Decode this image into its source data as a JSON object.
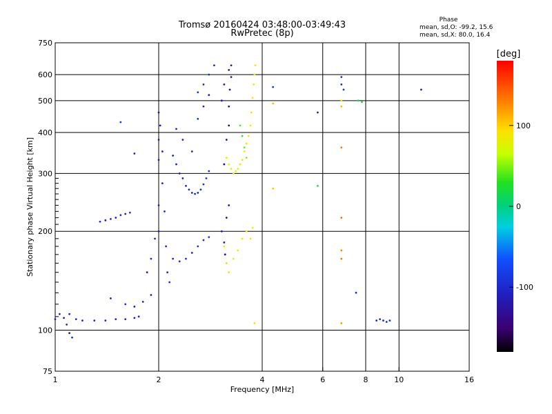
{
  "chart_data": {
    "type": "scatter",
    "title": "Tromsø 20160424 03:48:00-03:49:43",
    "subtitle": "RwPretec (8p)",
    "xlabel": "Frequency [MHz]",
    "ylabel": "Stationary phase Virtual Height [km]",
    "xscale": "log",
    "yscale": "log",
    "xlim": [
      1,
      16
    ],
    "ylim": [
      75,
      750
    ],
    "xticks": [
      1,
      2,
      4,
      6,
      8,
      10,
      16
    ],
    "yticks": [
      75,
      100,
      200,
      300,
      400,
      500,
      600,
      750
    ],
    "x_gridlines": [
      2,
      4,
      6,
      8,
      10
    ],
    "y_gridlines": [
      100,
      200,
      300,
      400,
      500,
      600
    ],
    "stats": {
      "heading": "Phase",
      "o_line": "mean, sd,O: -99.2, 15.6",
      "x_line": "mean, sd,X:  80.0, 16.4"
    },
    "colorbar": {
      "label": "[deg]",
      "range": [
        -180,
        180
      ],
      "ticks": [
        100,
        0,
        -100
      ]
    },
    "series": [
      {
        "mode": "O",
        "points": [
          [
            1.0,
            108,
            -110
          ],
          [
            1.03,
            112,
            -105
          ],
          [
            1.06,
            109,
            -112
          ],
          [
            1.08,
            104,
            -100
          ],
          [
            1.1,
            98,
            -120
          ],
          [
            1.12,
            95,
            -95
          ],
          [
            1.15,
            108,
            -108
          ],
          [
            1.2,
            107,
            -112
          ],
          [
            1.3,
            107,
            -110
          ],
          [
            1.4,
            107,
            -108
          ],
          [
            1.5,
            108,
            -110
          ],
          [
            1.6,
            108,
            -112
          ],
          [
            1.7,
            109,
            -110
          ],
          [
            1.75,
            110,
            -105
          ],
          [
            1.35,
            214,
            -105
          ],
          [
            1.4,
            216,
            -110
          ],
          [
            1.45,
            218,
            -100
          ],
          [
            1.5,
            220,
            -108
          ],
          [
            1.55,
            224,
            -104
          ],
          [
            1.6,
            226,
            -112
          ],
          [
            1.65,
            228,
            -100
          ],
          [
            1.45,
            125,
            -115
          ],
          [
            1.6,
            120,
            -100
          ],
          [
            1.7,
            118,
            -110
          ],
          [
            1.8,
            122,
            -105
          ],
          [
            1.9,
            128,
            -112
          ],
          [
            1.55,
            430,
            -95
          ],
          [
            1.7,
            345,
            -110
          ],
          [
            1.85,
            150,
            -110
          ],
          [
            1.9,
            165,
            -100
          ],
          [
            1.95,
            190,
            -105
          ],
          [
            2.0,
            200,
            -120
          ],
          [
            2.0,
            240,
            -110
          ],
          [
            2.0,
            330,
            -115
          ],
          [
            2.0,
            380,
            -120
          ],
          [
            2.0,
            460,
            -125
          ],
          [
            2.02,
            420,
            -110
          ],
          [
            2.05,
            350,
            -112
          ],
          [
            2.05,
            280,
            -110
          ],
          [
            2.08,
            230,
            -100
          ],
          [
            2.1,
            180,
            -105
          ],
          [
            2.12,
            150,
            -100
          ],
          [
            2.15,
            140,
            -102
          ],
          [
            2.2,
            340,
            -110
          ],
          [
            2.25,
            320,
            -112
          ],
          [
            2.3,
            300,
            -110
          ],
          [
            2.35,
            290,
            -108
          ],
          [
            2.4,
            275,
            -105
          ],
          [
            2.45,
            268,
            -100
          ],
          [
            2.5,
            262,
            -102
          ],
          [
            2.55,
            260,
            -105
          ],
          [
            2.6,
            262,
            -100
          ],
          [
            2.65,
            268,
            -100
          ],
          [
            2.7,
            278,
            -98
          ],
          [
            2.75,
            290,
            -95
          ],
          [
            2.8,
            305,
            -100
          ],
          [
            2.2,
            165,
            -105
          ],
          [
            2.3,
            162,
            -100
          ],
          [
            2.4,
            165,
            -98
          ],
          [
            2.5,
            172,
            -100
          ],
          [
            2.6,
            180,
            -95
          ],
          [
            2.7,
            188,
            -100
          ],
          [
            2.8,
            192,
            -95
          ],
          [
            2.25,
            410,
            -110
          ],
          [
            2.35,
            380,
            -108
          ],
          [
            2.5,
            350,
            -105
          ],
          [
            2.6,
            440,
            -100
          ],
          [
            2.7,
            480,
            -110
          ],
          [
            2.8,
            520,
            -115
          ],
          [
            2.6,
            530,
            -95
          ],
          [
            2.7,
            560,
            -100
          ],
          [
            2.8,
            600,
            -98
          ],
          [
            2.9,
            640,
            -105
          ],
          [
            3.05,
            200,
            -125
          ],
          [
            3.1,
            185,
            -130
          ],
          [
            3.12,
            170,
            -135
          ],
          [
            3.15,
            220,
            -140
          ],
          [
            3.2,
            240,
            -130
          ],
          [
            3.1,
            320,
            -135
          ],
          [
            3.15,
            380,
            -140
          ],
          [
            3.2,
            420,
            -145
          ],
          [
            3.2,
            480,
            -140
          ],
          [
            3.22,
            540,
            -135
          ],
          [
            3.25,
            590,
            -130
          ],
          [
            3.25,
            640,
            -125
          ],
          [
            3.2,
            620,
            -130
          ],
          [
            3.1,
            560,
            -125
          ],
          [
            3.05,
            500,
            -120
          ],
          [
            4.3,
            550,
            -95
          ],
          [
            6.8,
            590,
            -110
          ],
          [
            6.8,
            560,
            -105
          ],
          [
            6.9,
            540,
            -100
          ],
          [
            5.8,
            460,
            -110
          ],
          [
            8.6,
            107,
            -110
          ],
          [
            8.8,
            108,
            -105
          ],
          [
            9.0,
            107,
            -110
          ],
          [
            9.2,
            106,
            -105
          ],
          [
            9.4,
            107,
            -100
          ],
          [
            7.5,
            130,
            -100
          ],
          [
            11.6,
            540,
            -120
          ],
          [
            1.1,
            112,
            -110
          ]
        ]
      },
      {
        "mode": "X",
        "points": [
          [
            3.15,
            335,
            70
          ],
          [
            3.2,
            320,
            65
          ],
          [
            3.25,
            310,
            75
          ],
          [
            3.3,
            300,
            80
          ],
          [
            3.35,
            305,
            78
          ],
          [
            3.4,
            310,
            82
          ],
          [
            3.45,
            320,
            85
          ],
          [
            3.5,
            330,
            80
          ],
          [
            3.55,
            350,
            85
          ],
          [
            3.6,
            370,
            90
          ],
          [
            3.65,
            390,
            88
          ],
          [
            3.7,
            420,
            92
          ],
          [
            3.72,
            460,
            90
          ],
          [
            3.75,
            510,
            85
          ],
          [
            3.78,
            560,
            80
          ],
          [
            3.8,
            600,
            82
          ],
          [
            3.82,
            640,
            85
          ],
          [
            3.45,
            420,
            40
          ],
          [
            3.5,
            390,
            35
          ],
          [
            3.55,
            360,
            45
          ],
          [
            3.6,
            335,
            50
          ],
          [
            3.1,
            180,
            95
          ],
          [
            3.15,
            160,
            100
          ],
          [
            3.2,
            150,
            90
          ],
          [
            3.3,
            165,
            80
          ],
          [
            3.4,
            175,
            70
          ],
          [
            3.5,
            190,
            75
          ],
          [
            3.6,
            200,
            82
          ],
          [
            3.7,
            190,
            85
          ],
          [
            3.75,
            205,
            80
          ],
          [
            4.3,
            490,
            110
          ],
          [
            4.3,
            270,
            105
          ],
          [
            6.8,
            360,
            135
          ],
          [
            6.8,
            220,
            140
          ],
          [
            6.8,
            175,
            130
          ],
          [
            6.8,
            165,
            135
          ],
          [
            6.8,
            105,
            120
          ],
          [
            6.8,
            480,
            110
          ],
          [
            6.8,
            500,
            90
          ],
          [
            5.8,
            275,
            20
          ],
          [
            7.8,
            495,
            30
          ],
          [
            7.6,
            500,
            10
          ],
          [
            3.8,
            105,
            95
          ]
        ]
      }
    ]
  }
}
